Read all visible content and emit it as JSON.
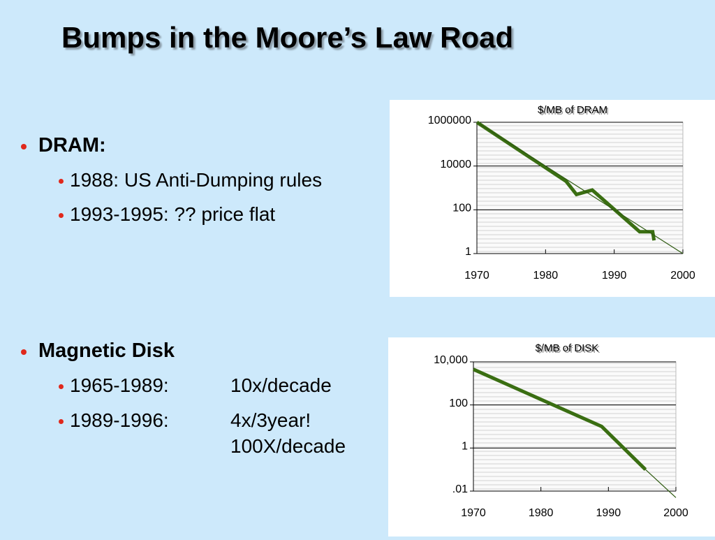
{
  "title": "Bumps in the Moore’s Law Road",
  "bullets": [
    {
      "text": "DRAM:",
      "items": [
        [
          "1988: US Anti-Dumping rules"
        ],
        [
          "1993-1995: ??  price flat"
        ]
      ]
    },
    {
      "text": "Magnetic Disk",
      "items": [
        [
          "1965-1989:",
          "10x/decade"
        ],
        [
          "1989-1996:",
          "4x/3year!",
          "100X/decade"
        ]
      ]
    }
  ],
  "chart_data": [
    {
      "type": "line",
      "title": "$/MB of DRAM",
      "log_y": true,
      "xlim": [
        1970,
        2000
      ],
      "xticks": [
        1970,
        1980,
        1990,
        2000
      ],
      "ylim": [
        1,
        1000000
      ],
      "yticks": [
        1,
        100,
        10000,
        1000000
      ],
      "grid": true,
      "series": [
        {
          "color": "#3a6e12",
          "weight": "heavy",
          "x": [
            1970,
            1983,
            1984.5,
            1986.8,
            1993.7,
            1995.6,
            1995.8
          ],
          "values": [
            1000000,
            2000,
            500,
            800,
            10,
            10,
            4
          ]
        },
        {
          "color": "#2e5a10",
          "weight": "light",
          "x": [
            1970,
            2000
          ],
          "values": [
            1000000,
            1
          ]
        }
      ]
    },
    {
      "type": "line",
      "title": "$/MB of DISK",
      "log_y": true,
      "xlim": [
        1970,
        2000
      ],
      "xticks": [
        1970,
        1980,
        1990,
        2000
      ],
      "ylim": [
        0.01,
        10000
      ],
      "yticks": [
        {
          "value": 0.01,
          "label": ".01"
        },
        1,
        100,
        {
          "value": 10000,
          "label": "10,000"
        }
      ],
      "grid": true,
      "series": [
        {
          "color": "#3a6e12",
          "weight": "heavy",
          "x": [
            1970,
            1989,
            1995.5
          ],
          "values": [
            4500,
            10,
            0.1
          ]
        },
        {
          "color": "#2e5a10",
          "weight": "light",
          "x": [
            1995.5,
            2000
          ],
          "values": [
            0.1,
            0.005
          ]
        }
      ]
    }
  ]
}
